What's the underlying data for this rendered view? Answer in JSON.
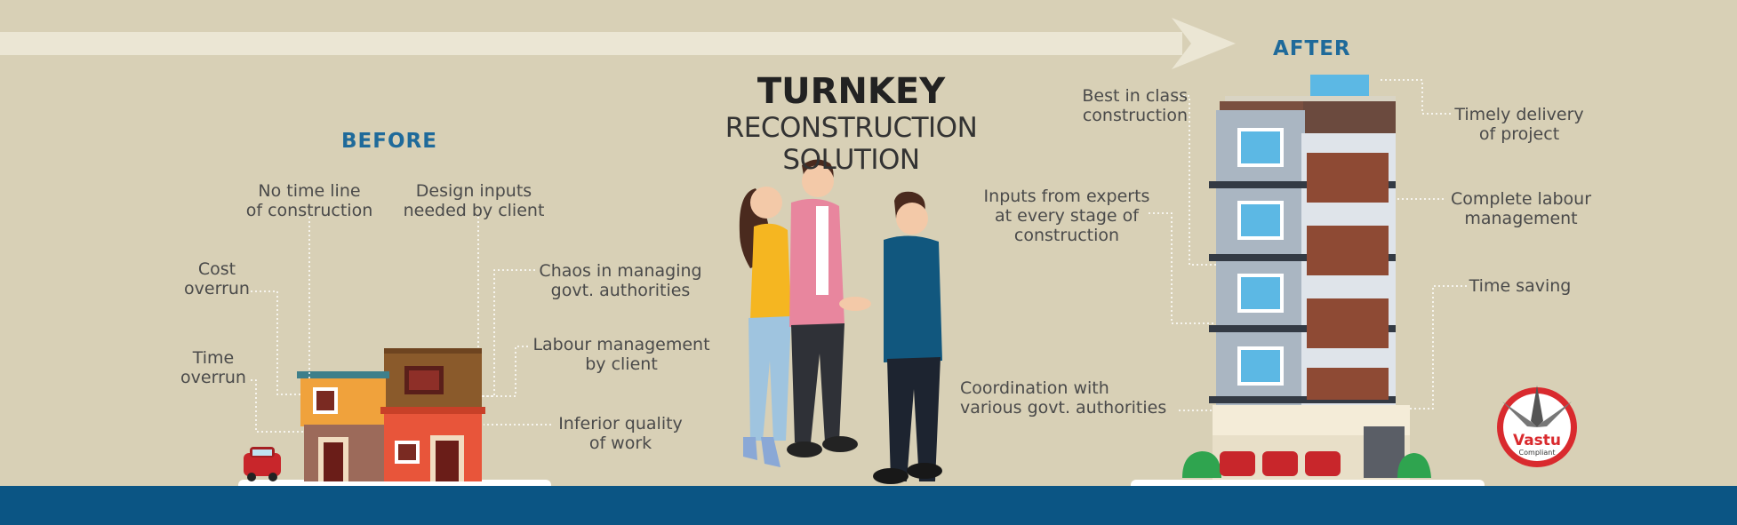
{
  "title": {
    "line1": "TURNKEY",
    "line2": "RECONSTRUCTION SOLUTION"
  },
  "before": {
    "heading": "BEFORE",
    "points": [
      {
        "line1": "No time line",
        "line2": "of construction"
      },
      {
        "line1": "Design inputs",
        "line2": "needed by client"
      },
      {
        "line1": "Cost",
        "line2": "overrun"
      },
      {
        "line1": "Chaos in managing",
        "line2": "govt. authorities"
      },
      {
        "line1": "Time",
        "line2": "overrun"
      },
      {
        "line1": "Labour management",
        "line2": "by client"
      },
      {
        "line1": "Inferior quality",
        "line2": "of work"
      }
    ]
  },
  "after": {
    "heading": "AFTER",
    "points": [
      {
        "line1": "Best in class",
        "line2": "construction"
      },
      {
        "line1": "Timely delivery",
        "line2": "of project"
      },
      {
        "line1": "Inputs from experts",
        "line2": "at every stage of",
        "line3": "construction"
      },
      {
        "line1": "Complete labour",
        "line2": "management"
      },
      {
        "line1": "Time saving"
      },
      {
        "line1": "Coordination with",
        "line2": "various govt. authorities"
      }
    ]
  },
  "badge": {
    "name": "Vastu",
    "sub": "Compliant"
  },
  "colors": {
    "background": "#d8d0b6",
    "ground": "#0b5584",
    "heading": "#1f6a9a",
    "arrow": "#ebe6d4"
  }
}
